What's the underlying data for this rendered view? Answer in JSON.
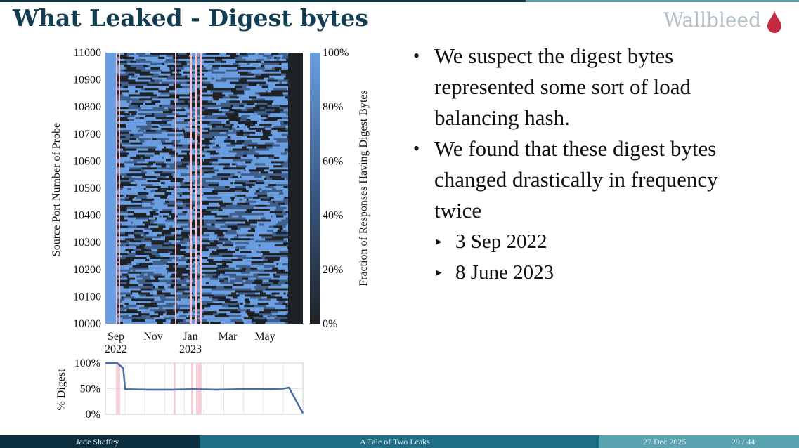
{
  "slide": {
    "title": "What Leaked - Digest bytes",
    "brand": "Wallbleed"
  },
  "bullets": {
    "b1": "We suspect the digest bytes represented some sort of load balancing hash.",
    "b2": "We found that these digest bytes changed drastically in frequency twice",
    "sub1": "3 Sep 2022",
    "sub2": "8 June 2023"
  },
  "footer": {
    "author": "Jade Sheffey",
    "talk": "A Tale of Two Leaks",
    "date": "27 Dec 2025",
    "page": "29 / 44"
  },
  "colors": {
    "accent": "#123c52",
    "heat_high": "#6a9ee0",
    "heat_low": "#1e2226",
    "line": "#4a6fa8",
    "highlight": "#f3c4cf"
  },
  "chart_data": [
    {
      "type": "heatmap",
      "title": "",
      "ylabel": "Source Port Number of Probe",
      "y_ticks": [
        "11000",
        "10900",
        "10800",
        "10700",
        "10600",
        "10500",
        "10400",
        "10300",
        "10200",
        "10100",
        "10000"
      ],
      "ylim": [
        10000,
        11000
      ],
      "x_ticks": [
        {
          "month": "Sep",
          "year": "2022"
        },
        {
          "month": "Nov",
          "year": ""
        },
        {
          "month": "Jan",
          "year": "2023"
        },
        {
          "month": "Mar",
          "year": ""
        },
        {
          "month": "May",
          "year": ""
        }
      ],
      "colorbar_label": "Fraction of Responses Having Digest Bytes",
      "colorbar_ticks": [
        "100%",
        "80%",
        "60%",
        "40%",
        "20%",
        "0%"
      ],
      "colorbar_range": [
        0,
        100
      ],
      "phases": [
        {
          "period": "before 3 Sep 2022",
          "fraction_percent": 100
        },
        {
          "period": "3 Sep 2022 - 8 June 2023",
          "fraction_percent": 50
        },
        {
          "period": "after 8 June 2023",
          "fraction_percent": 0
        }
      ]
    },
    {
      "type": "line",
      "ylabel": "% Digest",
      "y_ticks": [
        "100%",
        "50%",
        "0%"
      ],
      "ylim": [
        0,
        100
      ],
      "x": [
        "Sep 2022 start",
        "3 Sep 2022",
        "Sep 2022",
        "Oct 2022",
        "Nov 2022",
        "Dec 2022",
        "Jan 2023",
        "Feb 2023",
        "Mar 2023",
        "Apr 2023",
        "May 2023",
        "8 June 2023",
        "June 2023 end"
      ],
      "values": [
        100,
        100,
        90,
        49,
        48,
        48,
        49,
        48,
        49,
        49,
        50,
        52,
        2
      ]
    }
  ]
}
